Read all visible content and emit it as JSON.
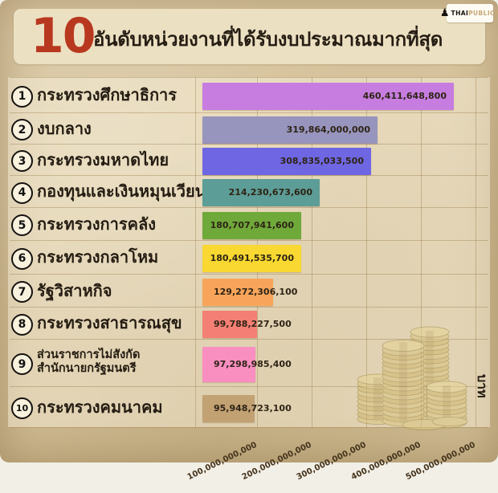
{
  "header": {
    "rank_number": "10",
    "title": "อันดับหน่วยงานที่ได้รับงบประมาณมากที่สุด",
    "logo": {
      "brand_black": "THAI",
      "brand_light": "PUBLICA",
      "icon": "pawn-icon"
    }
  },
  "chart_data": {
    "type": "bar",
    "orientation": "horizontal",
    "title": "10 อันดับหน่วยงานที่ได้รับงบประมาณมากที่สุด",
    "unit_label": "บาท",
    "ranks": [
      "1",
      "2",
      "3",
      "4",
      "5",
      "6",
      "7",
      "8",
      "9",
      "10"
    ],
    "categories": [
      "กระทรวงศึกษาธิการ",
      "งบกลาง",
      "กระทรวงมหาดไทย",
      "กองทุนและเงินหมุนเวียน",
      "กระทรวงการคลัง",
      "กระทรวงกลาโหม",
      "รัฐวิสาหกิจ",
      "กระทรวงสาธารณสุข",
      "ส่วนราชการไม่สังกัดสำนักนายกรัฐมนตรี",
      "กระทรวงคมนาคม"
    ],
    "category_lines": [
      [
        "กระทรวงศึกษาธิการ"
      ],
      [
        "งบกลาง"
      ],
      [
        "กระทรวงมหาดไทย"
      ],
      [
        "กองทุนและเงินหมุนเวียน"
      ],
      [
        "กระทรวงการคลัง"
      ],
      [
        "กระทรวงกลาโหม"
      ],
      [
        "รัฐวิสาหกิจ"
      ],
      [
        "กระทรวงสาธารณสุข"
      ],
      [
        "ส่วนราชการไม่สังกัด",
        "สำนักนายกรัฐมนตรี"
      ],
      [
        "กระทรวงคมนาคม"
      ]
    ],
    "values": [
      460411648800,
      319864000000,
      308835033500,
      214230673600,
      180707941600,
      180491535700,
      129272306100,
      99788227500,
      97298985400,
      95948723100
    ],
    "value_labels": [
      "460,411,648,800",
      "319,864,000,000",
      "308,835,033,500",
      "214,230,673,600",
      "180,707,941,600",
      "180,491,535,700",
      "129,272,306,100",
      "99,788,227,500",
      "97,298,985,400",
      "95,948,723,100"
    ],
    "bar_colors": [
      "#c77de0",
      "#9794bd",
      "#6f66e3",
      "#5d9d97",
      "#6fa93a",
      "#f8d831",
      "#f8a55b",
      "#f47f74",
      "#f98ec1",
      "#c2a173"
    ],
    "x_ticks": [
      "100,000,000,000",
      "200,000,000,000",
      "300,000,000,000",
      "400,000,000,000",
      "500,000,000,000"
    ],
    "xlim": [
      0,
      500000000000
    ],
    "grid": true,
    "legend": false,
    "accent_color": "#b8381f",
    "paper_color": "#d8c59f",
    "panel_color": "#ece0c2"
  }
}
